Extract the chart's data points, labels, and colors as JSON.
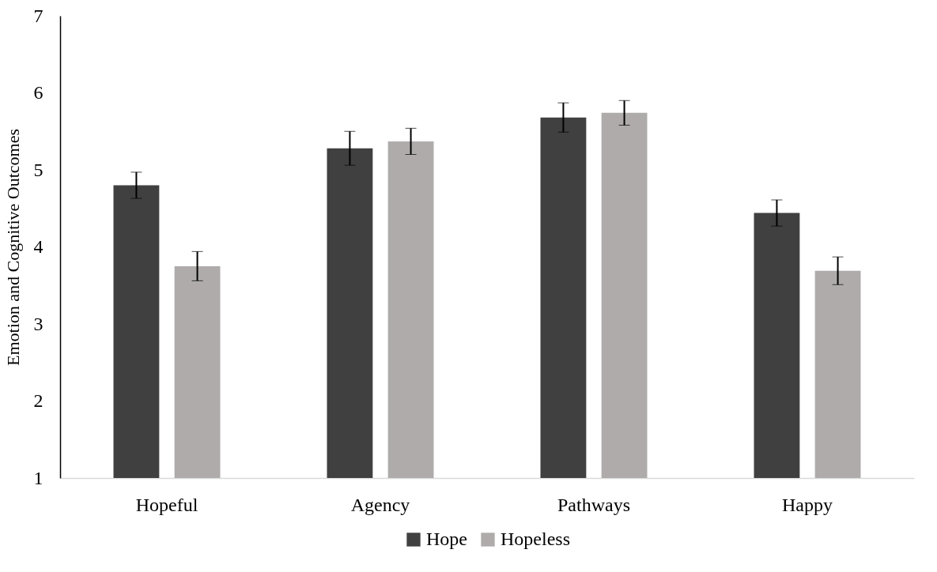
{
  "chart_data": {
    "type": "bar",
    "ylabel": "Emotion and Cognitive Outcomes",
    "categories": [
      "Hopeful",
      "Agency",
      "Pathways",
      "Happy"
    ],
    "series": [
      {
        "name": "Hope",
        "color": "#404040",
        "values": [
          4.8,
          5.28,
          5.68,
          4.44
        ],
        "errors": [
          0.17,
          0.22,
          0.19,
          0.17
        ]
      },
      {
        "name": "Hopeless",
        "color": "#afabab",
        "values": [
          3.75,
          5.37,
          5.74,
          3.69
        ],
        "errors": [
          0.19,
          0.17,
          0.16,
          0.18
        ]
      }
    ],
    "ylim": [
      1,
      7
    ],
    "yticks": [
      1,
      2,
      3,
      4,
      5,
      6,
      7
    ],
    "grid": false,
    "legend": "bottom"
  }
}
